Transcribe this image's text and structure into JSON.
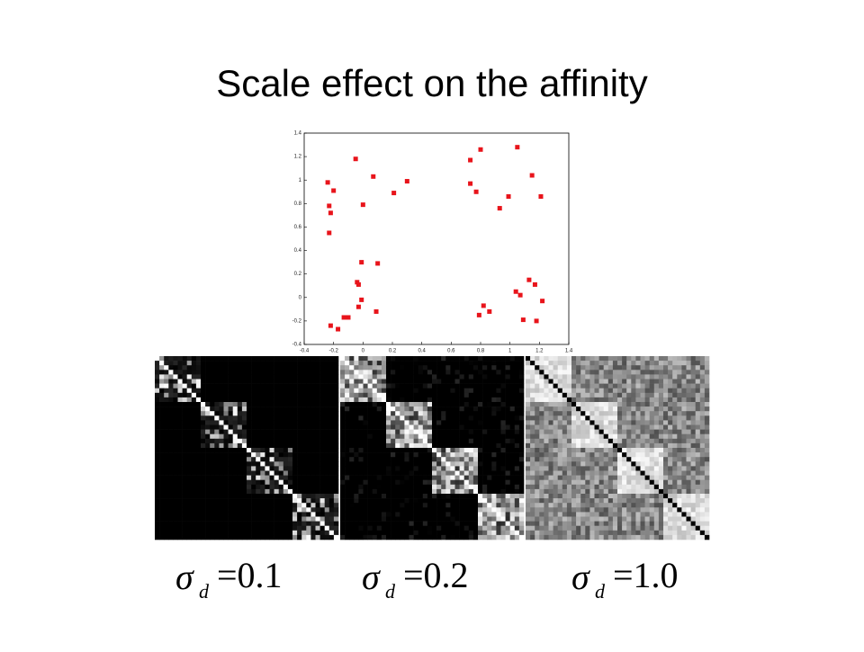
{
  "title": "Scale effect on the affinity",
  "chart_data": {
    "type": "scatter",
    "color": "#e8141b",
    "xlim": [
      -0.4,
      1.4
    ],
    "ylim": [
      -0.4,
      1.4
    ],
    "xticks": [
      -0.4,
      -0.2,
      0,
      0.2,
      0.4,
      0.6,
      0.8,
      1,
      1.2,
      1.4
    ],
    "yticks": [
      -0.4,
      -0.2,
      0,
      0.2,
      0.4,
      0.6,
      0.8,
      1,
      1.2,
      1.4
    ],
    "x": [
      -0.24,
      -0.2,
      -0.23,
      -0.22,
      -0.23,
      -0.05,
      0.07,
      0.0,
      0.21,
      0.3,
      0.73,
      0.8,
      0.73,
      0.77,
      0.93,
      0.99,
      1.05,
      1.15,
      1.21,
      -0.01,
      0.1,
      -0.04,
      -0.03,
      -0.01,
      -0.03,
      -0.13,
      -0.1,
      -0.17,
      -0.22,
      0.09,
      1.13,
      1.17,
      1.04,
      1.07,
      1.22,
      1.09,
      1.18,
      0.82,
      0.79,
      0.86
    ],
    "values": [
      0.98,
      0.91,
      0.78,
      0.72,
      0.55,
      1.18,
      1.03,
      0.79,
      0.89,
      0.99,
      1.17,
      1.26,
      0.97,
      0.9,
      0.76,
      0.86,
      1.28,
      1.04,
      0.86,
      0.3,
      0.29,
      0.13,
      0.11,
      -0.02,
      -0.08,
      -0.17,
      -0.17,
      -0.27,
      -0.24,
      -0.12,
      0.15,
      0.11,
      0.05,
      0.02,
      -0.03,
      -0.19,
      -0.2,
      -0.07,
      -0.15,
      -0.12
    ]
  },
  "captions": [
    {
      "symbol": "σ",
      "subscript": "d",
      "text": "=0.1"
    },
    {
      "symbol": "σ",
      "subscript": "d",
      "text": "=0.2"
    },
    {
      "symbol": "σ",
      "subscript": "d",
      "text": "=1.0"
    }
  ]
}
